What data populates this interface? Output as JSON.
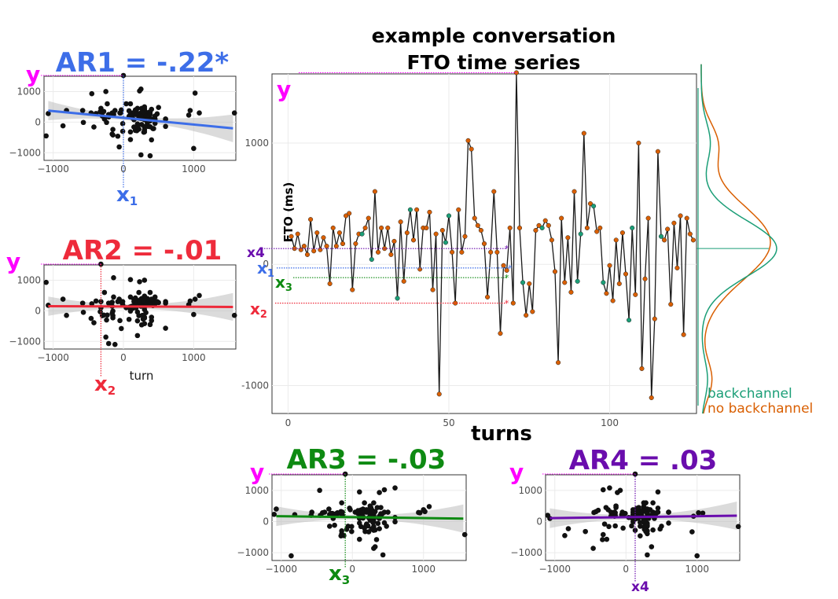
{
  "colors": {
    "backchannel": "#1b9e77",
    "no_backchannel": "#d95f02",
    "y_marker": "#ff00ff",
    "x1": "#3d6ee8",
    "x2": "#ee2b3b",
    "x3": "#0e8a12",
    "x4": "#6a0dad",
    "line": "#1a1a1a",
    "ci_band": "#bdbdbd"
  },
  "main": {
    "title_line1": "example conversation",
    "title_line2": "FTO time series",
    "xlabel": "turns",
    "ylabel": "FTO (ms)",
    "y_marker_label": "y",
    "legend": {
      "backchannel": "backchannel",
      "no_backchannel": "no backchannel"
    },
    "lag_labels": {
      "x1": "x",
      "x1_sub": "1",
      "x2": "x",
      "x2_sub": "2",
      "x3": "x",
      "x3_sub": "3",
      "x4": "x4"
    }
  },
  "ar_panels": {
    "ar1": {
      "title": "AR1 = -.22*",
      "y_label": "y",
      "x_label": "x",
      "x_sub": "1",
      "axis_title": ""
    },
    "ar2": {
      "title": "AR2 = -.01",
      "y_label": "y",
      "x_label": "x",
      "x_sub": "2",
      "axis_title": "turn"
    },
    "ar3": {
      "title": "AR3 = -.03",
      "y_label": "y",
      "x_label": "x",
      "x_sub": "3",
      "axis_title": ""
    },
    "ar4": {
      "title": "AR4 =  .03",
      "y_label": "y",
      "x_label": "x4",
      "x_sub": "",
      "axis_title": ""
    }
  },
  "chart_data": [
    {
      "type": "line",
      "title": "example conversation\nFTO time series",
      "xlabel": "turns",
      "ylabel": "FTO (ms)",
      "xlim": [
        -5,
        127
      ],
      "ylim": [
        -1230,
        1570
      ],
      "x_ticks": [
        0,
        50,
        100
      ],
      "y_ticks": [
        -1000,
        0,
        1000
      ],
      "grid": true,
      "legend": [
        "backchannel",
        "no backchannel"
      ],
      "legend_position": "right",
      "x": [
        1,
        2,
        3,
        4,
        5,
        6,
        7,
        8,
        9,
        10,
        11,
        12,
        13,
        14,
        15,
        16,
        17,
        18,
        19,
        20,
        21,
        22,
        23,
        24,
        25,
        26,
        27,
        28,
        29,
        30,
        31,
        32,
        33,
        34,
        35,
        36,
        37,
        38,
        39,
        40,
        41,
        42,
        43,
        44,
        45,
        46,
        47,
        48,
        49,
        50,
        51,
        52,
        53,
        54,
        55,
        56,
        57,
        58,
        59,
        60,
        61,
        62,
        63,
        64,
        65,
        66,
        67,
        68,
        69,
        70,
        71,
        72,
        73,
        74,
        75,
        76,
        77,
        78,
        79,
        80,
        81,
        82,
        83,
        84,
        85,
        86,
        87,
        88,
        89,
        90,
        91,
        92,
        93,
        94,
        95,
        96,
        97,
        98,
        99,
        100,
        101,
        102,
        103,
        104,
        105,
        106,
        107,
        108,
        109,
        110,
        111,
        112,
        113,
        114,
        115,
        116,
        117,
        118,
        119,
        120,
        121,
        122,
        123,
        124,
        125,
        126
      ],
      "y": [
        230,
        130,
        250,
        120,
        150,
        80,
        370,
        110,
        260,
        120,
        220,
        150,
        -160,
        300,
        150,
        260,
        170,
        400,
        420,
        -210,
        170,
        250,
        250,
        300,
        380,
        40,
        600,
        100,
        300,
        130,
        300,
        80,
        190,
        -280,
        350,
        -140,
        260,
        450,
        200,
        450,
        -40,
        300,
        300,
        430,
        -210,
        250,
        -1070,
        280,
        180,
        400,
        100,
        -320,
        450,
        100,
        230,
        1020,
        950,
        380,
        320,
        280,
        170,
        -270,
        100,
        600,
        100,
        -570,
        -10,
        -50,
        300,
        -320,
        1580,
        300,
        -150,
        -420,
        -160,
        -390,
        280,
        320,
        300,
        360,
        320,
        200,
        -60,
        -810,
        380,
        -150,
        220,
        -230,
        600,
        -140,
        250,
        1080,
        300,
        500,
        480,
        270,
        300,
        -150,
        -240,
        -10,
        -300,
        200,
        -160,
        260,
        -80,
        -460,
        300,
        -250,
        1000,
        -860,
        -120,
        380,
        -1100,
        -450,
        930,
        230,
        200,
        290,
        -330,
        340,
        -30,
        400,
        -580,
        380,
        250,
        200
      ],
      "groups": [
        "n",
        "n",
        "n",
        "n",
        "n",
        "n",
        "n",
        "n",
        "n",
        "n",
        "n",
        "n",
        "n",
        "n",
        "n",
        "n",
        "n",
        "n",
        "n",
        "n",
        "n",
        "n",
        "b",
        "n",
        "n",
        "b",
        "n",
        "n",
        "n",
        "n",
        "n",
        "n",
        "n",
        "b",
        "n",
        "n",
        "n",
        "b",
        "n",
        "n",
        "n",
        "n",
        "n",
        "n",
        "n",
        "n",
        "n",
        "n",
        "b",
        "b",
        "n",
        "n",
        "n",
        "n",
        "n",
        "n",
        "n",
        "n",
        "n",
        "n",
        "n",
        "n",
        "n",
        "n",
        "n",
        "n",
        "n",
        "n",
        "n",
        "n",
        "n",
        "n",
        "b",
        "n",
        "n",
        "n",
        "n",
        "n",
        "b",
        "n",
        "n",
        "n",
        "n",
        "n",
        "n",
        "n",
        "n",
        "n",
        "n",
        "b",
        "b",
        "n",
        "n",
        "n",
        "b",
        "n",
        "n",
        "b",
        "n",
        "n",
        "n",
        "n",
        "n",
        "n",
        "n",
        "b",
        "b",
        "n",
        "n",
        "n",
        "n",
        "n",
        "n",
        "n",
        "n",
        "b",
        "n",
        "n",
        "n",
        "n",
        "n",
        "n",
        "n",
        "n",
        "n",
        "n"
      ],
      "density_backchannel_peak": 130,
      "density_no_backchannel_peak": 180
    },
    {
      "type": "scatter",
      "title": "AR1 = -.22*",
      "xlabel": "",
      "ylabel": "",
      "xlim": [
        -1130,
        1600
      ],
      "ylim": [
        -1250,
        1500
      ],
      "x_ticks": [
        -1000,
        0,
        1000
      ],
      "y_ticks": [
        -1000,
        0,
        1000
      ],
      "fit": {
        "intercept": 141,
        "slope": -0.22
      },
      "marker": {
        "x": 0,
        "y": 1520
      }
    },
    {
      "type": "scatter",
      "title": "AR2 = -.01",
      "xlabel": "turn",
      "ylabel": "",
      "xlim": [
        -1130,
        1600
      ],
      "ylim": [
        -1250,
        1500
      ],
      "x_ticks": [
        -1000,
        0,
        1000
      ],
      "y_ticks": [
        -1000,
        0,
        1000
      ],
      "fit": {
        "intercept": 141,
        "slope": -0.01
      },
      "marker": {
        "x": -320,
        "y": 1520
      }
    },
    {
      "type": "scatter",
      "title": "AR3 = -.03",
      "xlabel": "",
      "ylabel": "",
      "xlim": [
        -1130,
        1600
      ],
      "ylim": [
        -1250,
        1500
      ],
      "x_ticks": [
        -1000,
        0,
        1000
      ],
      "y_ticks": [
        -1000,
        0,
        1000
      ],
      "fit": {
        "intercept": 141,
        "slope": -0.03
      },
      "marker": {
        "x": -100,
        "y": 1520
      }
    },
    {
      "type": "scatter",
      "title": "AR4 =  .03",
      "xlabel": "",
      "ylabel": "",
      "xlim": [
        -1130,
        1600
      ],
      "ylim": [
        -1250,
        1500
      ],
      "x_ticks": [
        -1000,
        0,
        1000
      ],
      "y_ticks": [
        -1000,
        0,
        1000
      ],
      "fit": {
        "intercept": 141,
        "slope": 0.03
      },
      "marker": {
        "x": 130,
        "y": 1520
      }
    }
  ]
}
